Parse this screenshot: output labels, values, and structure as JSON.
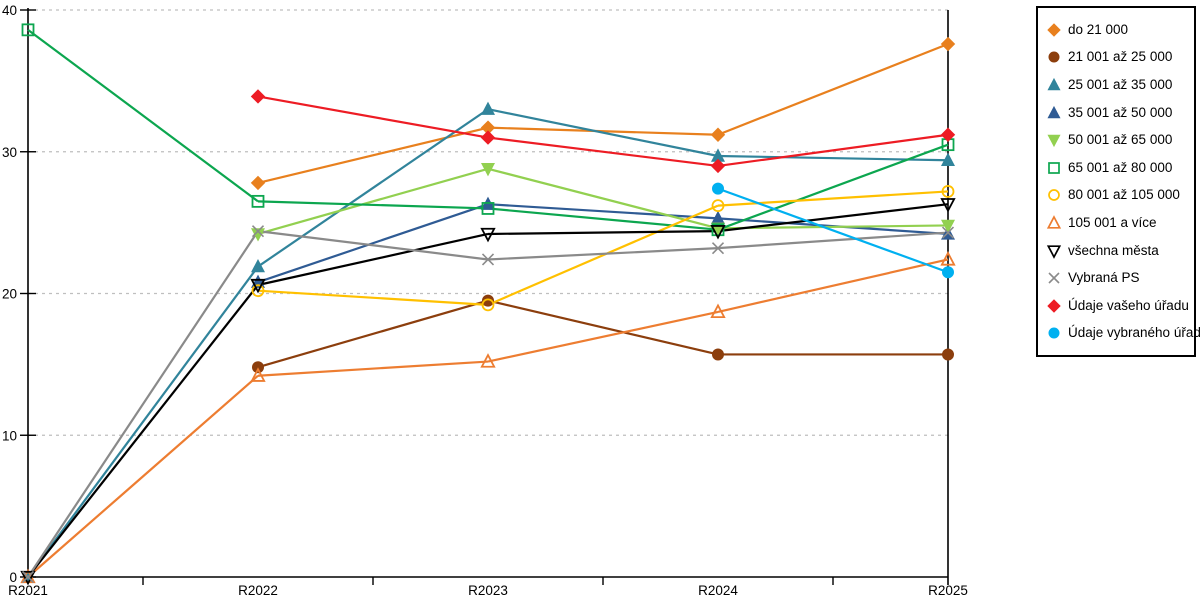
{
  "chart_data": {
    "type": "line",
    "title": "",
    "xlabel": "",
    "ylabel": "",
    "categories": [
      "R2021",
      "R2022",
      "R2023",
      "R2024",
      "R2025"
    ],
    "ylim": [
      0,
      40
    ],
    "yticks": [
      0,
      10,
      20,
      30,
      40
    ],
    "ytick_labels": [
      "0",
      "10",
      "20",
      "30",
      "40"
    ],
    "grid": "horizontal-dashed",
    "grid_color": "#bfbfbf",
    "axis_color": "#000000",
    "legend_position": "right",
    "series": [
      {
        "name": "do 21 000",
        "marker": "diamond",
        "fill": "filled",
        "color": "#e8801e",
        "values": [
          null,
          27.8,
          31.7,
          31.2,
          37.6
        ]
      },
      {
        "name": "21 001 až 25 000",
        "marker": "circle",
        "fill": "filled",
        "color": "#8c3e0d",
        "values": [
          null,
          14.8,
          19.5,
          15.7,
          15.7
        ]
      },
      {
        "name": "25 001 až 35 000",
        "marker": "triangle-up",
        "fill": "filled",
        "color": "#31849b",
        "values": [
          0,
          21.9,
          33.0,
          29.7,
          29.4
        ]
      },
      {
        "name": "35 001 až 50 000",
        "marker": "triangle-up",
        "fill": "filled",
        "color": "#2f5b94",
        "values": [
          null,
          20.8,
          26.3,
          25.3,
          24.2
        ]
      },
      {
        "name": "50 001 až 65 000",
        "marker": "triangle-down",
        "fill": "filled",
        "color": "#92d050",
        "values": [
          null,
          24.2,
          28.8,
          24.6,
          24.8
        ]
      },
      {
        "name": "65 001 až 80 000",
        "marker": "square",
        "fill": "open",
        "color": "#0ca64f",
        "values": [
          38.6,
          26.5,
          26.0,
          24.5,
          30.5
        ]
      },
      {
        "name": "80 001 až 105 000",
        "marker": "circle",
        "fill": "open",
        "color": "#ffc000",
        "values": [
          null,
          20.2,
          19.2,
          26.2,
          27.2
        ]
      },
      {
        "name": "105 001 a více",
        "marker": "triangle-up",
        "fill": "open",
        "color": "#ed7d31",
        "values": [
          0,
          14.2,
          15.2,
          18.7,
          22.4
        ]
      },
      {
        "name": "všechna města",
        "marker": "triangle-down",
        "fill": "open",
        "color": "#000000",
        "values": [
          0,
          20.6,
          24.2,
          24.4,
          26.3
        ]
      },
      {
        "name": "Vybraná PS",
        "marker": "x",
        "fill": "open",
        "color": "#8a8a8a",
        "values": [
          0,
          24.4,
          22.4,
          23.2,
          24.3
        ]
      },
      {
        "name": "Údaje vašeho úřadu",
        "marker": "diamond",
        "fill": "filled",
        "color": "#ed1c24",
        "values": [
          null,
          33.9,
          31.0,
          29.0,
          31.2
        ]
      },
      {
        "name": "Údaje vybraného úřadu",
        "marker": "circle",
        "fill": "filled",
        "color": "#00b0f0",
        "values": [
          null,
          null,
          null,
          27.4,
          21.5
        ]
      }
    ]
  }
}
